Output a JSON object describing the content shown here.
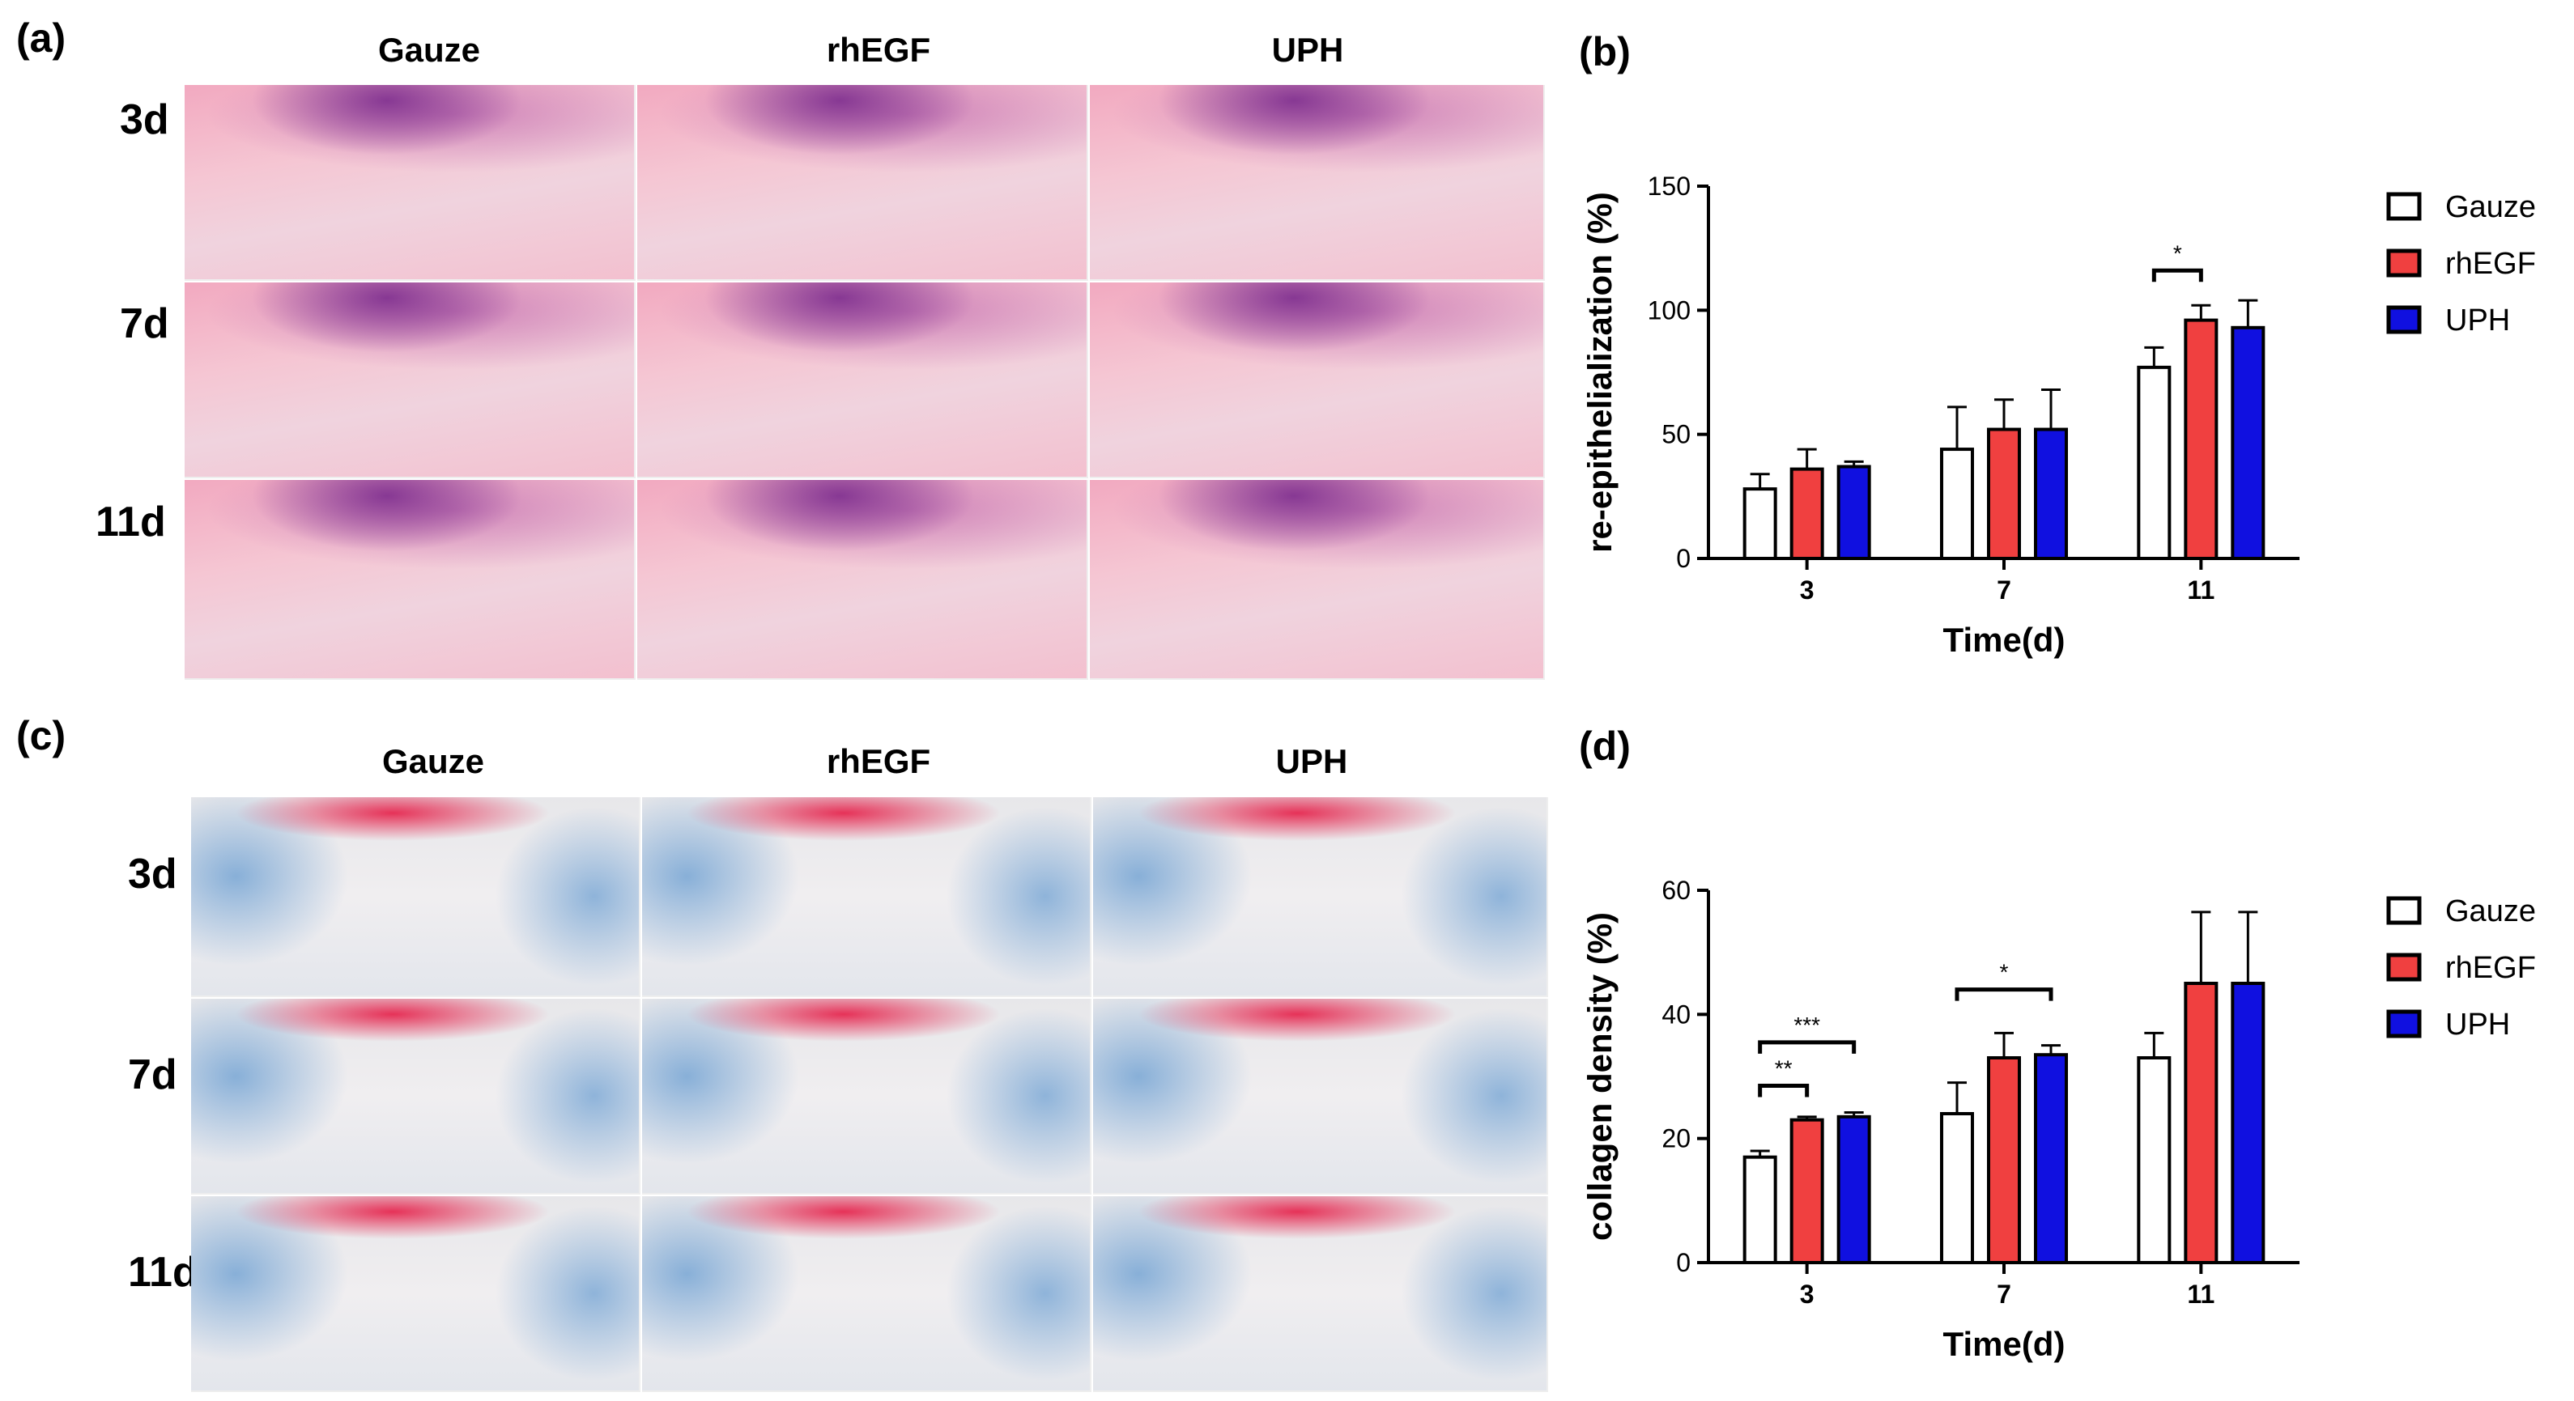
{
  "panels": {
    "a": "(a)",
    "b": "(b)",
    "c": "(c)",
    "d": "(d)"
  },
  "image_grid": {
    "columns": [
      "Gauze",
      "rhEGF",
      "UPH"
    ],
    "rows": [
      "3d",
      "7d",
      "11d"
    ]
  },
  "colors": {
    "Gauze": "#ffffff",
    "rhEGF": "#f04040",
    "UPH": "#1010e0"
  },
  "chart_data": [
    {
      "id": "b",
      "type": "bar",
      "categories": [
        "3",
        "7",
        "11"
      ],
      "xlabel": "Time(d)",
      "ylabel": "re-epithelialization (%)",
      "ylim": [
        0,
        150
      ],
      "yticks": [
        0,
        50,
        100,
        150
      ],
      "legend_position": "right",
      "series": [
        {
          "name": "Gauze",
          "values": [
            28,
            44,
            77
          ],
          "errors": [
            6,
            17,
            8
          ]
        },
        {
          "name": "rhEGF",
          "values": [
            36,
            52,
            96
          ],
          "errors": [
            8,
            12,
            6
          ]
        },
        {
          "name": "UPH",
          "values": [
            37,
            52,
            93
          ],
          "errors": [
            2,
            16,
            11
          ]
        }
      ],
      "significance": [
        {
          "category_index": 2,
          "from_series": 0,
          "to_series": 1,
          "label": "*",
          "y": 116
        }
      ]
    },
    {
      "id": "d",
      "type": "bar",
      "categories": [
        "3",
        "7",
        "11"
      ],
      "xlabel": "Time(d)",
      "ylabel": "collagen density (%)",
      "ylim": [
        0,
        60
      ],
      "yticks": [
        0,
        20,
        40,
        60
      ],
      "legend_position": "right",
      "series": [
        {
          "name": "Gauze",
          "values": [
            17,
            24,
            33
          ],
          "errors": [
            1,
            5,
            4
          ]
        },
        {
          "name": "rhEGF",
          "values": [
            23,
            33,
            45
          ],
          "errors": [
            0.5,
            4,
            11.5
          ]
        },
        {
          "name": "UPH",
          "values": [
            23.5,
            33.5,
            45
          ],
          "errors": [
            0.7,
            1.5,
            11.5
          ]
        }
      ],
      "significance": [
        {
          "category_index": 0,
          "from_series": 0,
          "to_series": 1,
          "label": "**",
          "y": 28.5
        },
        {
          "category_index": 0,
          "from_series": 0,
          "to_series": 2,
          "label": "***",
          "y": 35.5
        },
        {
          "category_index": 1,
          "from_series": 0,
          "to_series": 2,
          "label": "*",
          "y": 44
        }
      ]
    }
  ]
}
